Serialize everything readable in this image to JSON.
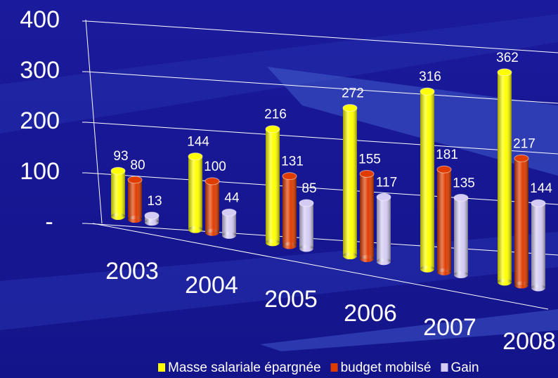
{
  "chart_data": {
    "type": "bar3d",
    "categories": [
      "2003",
      "2004",
      "2005",
      "2006",
      "2007",
      "2008"
    ],
    "series": [
      {
        "name": "Masse salariale épargnée",
        "color": "#ffff00",
        "values": [
          93,
          144,
          216,
          272,
          316,
          362
        ]
      },
      {
        "name": "budget mobilsé",
        "color": "#e03c00",
        "values": [
          80,
          100,
          131,
          155,
          181,
          217
        ]
      },
      {
        "name": "Gain",
        "color": "#d4ccf4",
        "values": [
          13,
          44,
          85,
          117,
          135,
          144
        ]
      }
    ],
    "ylim": [
      0,
      400
    ],
    "yticks": [
      {
        "value": 0,
        "label": "-"
      },
      100,
      200,
      300,
      400
    ],
    "grid": true,
    "legend": "bottom"
  }
}
